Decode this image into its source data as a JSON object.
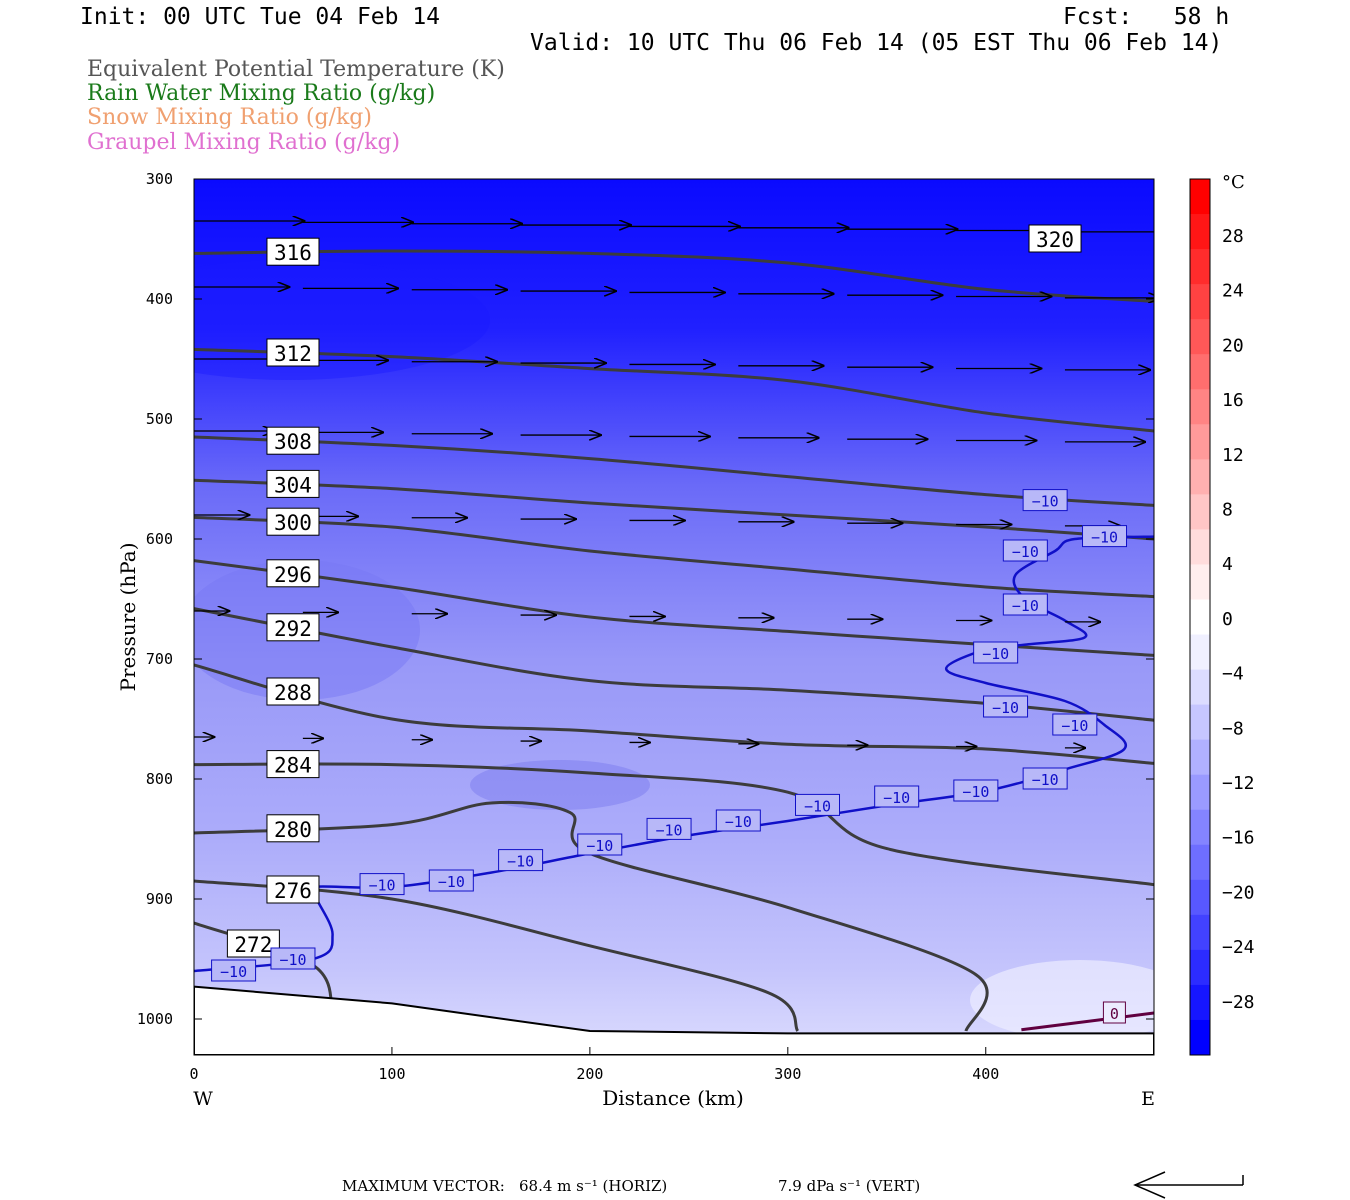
{
  "header": {
    "init": "Init: 00 UTC Tue 04 Feb 14",
    "fcst": "Fcst:   58 h",
    "valid": "Valid: 10 UTC Thu 06 Feb 14 (05 EST Thu 06 Feb 14)"
  },
  "legend": [
    {
      "text": "Equivalent Potential Temperature (K)",
      "color": "#555555"
    },
    {
      "text": "Rain Water Mixing Ratio (g/kg)",
      "color": "#1a7a1a"
    },
    {
      "text": "Snow Mixing Ratio (g/kg)",
      "color": "#f0a070"
    },
    {
      "text": "Graupel Mixing Ratio (g/kg)",
      "color": "#e070d0"
    }
  ],
  "colorbar": {
    "unit": "°C",
    "labels": [
      "28",
      "24",
      "20",
      "16",
      "12",
      "8",
      "4",
      "0",
      "−4",
      "−8",
      "−12",
      "−16",
      "−20",
      "−24",
      "−28"
    ],
    "colors": [
      "#0000ff",
      "#1616ff",
      "#2c2cff",
      "#4242ff",
      "#5858ff",
      "#6e6eff",
      "#8484ff",
      "#9a9aff",
      "#b0b0ff",
      "#c6c6ff",
      "#dcdcff",
      "#f0f0ff",
      "#ffffff",
      "#ffeeee",
      "#ffdcdc",
      "#ffc6c6",
      "#ffb0b0",
      "#ff9a9a",
      "#ff8484",
      "#ff6e6e",
      "#ff5858",
      "#ff4242",
      "#ff2c2c",
      "#ff1616",
      "#ff0000"
    ]
  },
  "footer": {
    "max_vector": "MAXIMUM VECTOR:",
    "horiz_value": "68.4 m s⁻¹ (HORIZ)",
    "vert_value": "7.9 dPa s⁻¹ (VERT)"
  },
  "chart_data": {
    "type": "contour",
    "xlabel": "Distance (km)",
    "ylabel": "Pressure (hPa)",
    "xlim": [
      0,
      485
    ],
    "ylim": [
      1030,
      300
    ],
    "x_ticks": [
      "0",
      "100",
      "200",
      "300",
      "400"
    ],
    "y_ticks": [
      "300",
      "400",
      "500",
      "600",
      "700",
      "800",
      "900",
      "1000"
    ],
    "x_ticks_values": [
      0,
      100,
      200,
      300,
      400
    ],
    "y_ticks_values": [
      300,
      400,
      500,
      600,
      700,
      800,
      900,
      1000
    ],
    "west_label": "W",
    "east_label": "E",
    "theta_e_contours": [
      {
        "label": "320",
        "points": [
          [
            435,
            350
          ]
        ]
      },
      {
        "label": "316",
        "points": [
          [
            0,
            362
          ],
          [
            100,
            360
          ],
          [
            200,
            362
          ],
          [
            300,
            370
          ],
          [
            400,
            392
          ],
          [
            485,
            402
          ]
        ]
      },
      {
        "label": "312",
        "points": [
          [
            0,
            442
          ],
          [
            100,
            448
          ],
          [
            200,
            458
          ],
          [
            300,
            468
          ],
          [
            400,
            495
          ],
          [
            485,
            510
          ]
        ]
      },
      {
        "label": "308",
        "points": [
          [
            0,
            515
          ],
          [
            100,
            522
          ],
          [
            200,
            533
          ],
          [
            300,
            548
          ],
          [
            400,
            563
          ],
          [
            485,
            572
          ]
        ]
      },
      {
        "label": "304",
        "points": [
          [
            0,
            551
          ],
          [
            100,
            558
          ],
          [
            200,
            570
          ],
          [
            300,
            580
          ],
          [
            400,
            590
          ],
          [
            485,
            600
          ]
        ]
      },
      {
        "label": "300",
        "points": [
          [
            0,
            582
          ],
          [
            100,
            590
          ],
          [
            200,
            610
          ],
          [
            300,
            625
          ],
          [
            400,
            640
          ],
          [
            485,
            648
          ]
        ]
      },
      {
        "label": "296",
        "points": [
          [
            0,
            618
          ],
          [
            100,
            640
          ],
          [
            200,
            665
          ],
          [
            300,
            677
          ],
          [
            400,
            688
          ],
          [
            485,
            697
          ]
        ]
      },
      {
        "label": "292",
        "points": [
          [
            0,
            658
          ],
          [
            100,
            690
          ],
          [
            200,
            718
          ],
          [
            300,
            726
          ],
          [
            400,
            737
          ],
          [
            485,
            751
          ]
        ]
      },
      {
        "label": "288",
        "points": [
          [
            0,
            705
          ],
          [
            100,
            750
          ],
          [
            200,
            760
          ],
          [
            300,
            771
          ],
          [
            400,
            775
          ],
          [
            485,
            787
          ]
        ]
      },
      {
        "label": "284",
        "points": [
          [
            0,
            788
          ],
          [
            100,
            788
          ],
          [
            200,
            795
          ],
          [
            300,
            811
          ],
          [
            350,
            858
          ],
          [
            485,
            888
          ]
        ]
      },
      {
        "label": "280",
        "points": [
          [
            0,
            845
          ],
          [
            100,
            838
          ],
          [
            150,
            820
          ],
          [
            190,
            828
          ],
          [
            200,
            862
          ],
          [
            300,
            907
          ],
          [
            395,
            963
          ],
          [
            390,
            1010
          ]
        ]
      },
      {
        "label": "276",
        "points": [
          [
            0,
            885
          ],
          [
            100,
            900
          ],
          [
            200,
            939
          ],
          [
            290,
            978
          ],
          [
            305,
            1010
          ]
        ]
      },
      {
        "label": "272",
        "points": [
          [
            0,
            920
          ],
          [
            60,
            955
          ],
          [
            70,
            995
          ]
        ]
      }
    ],
    "temperature_labels": [
      "−10",
      "0"
    ],
    "terrain_pressure": [
      [
        0,
        973
      ],
      [
        100,
        987
      ],
      [
        200,
        1010
      ],
      [
        300,
        1012
      ],
      [
        485,
        1012
      ]
    ]
  }
}
